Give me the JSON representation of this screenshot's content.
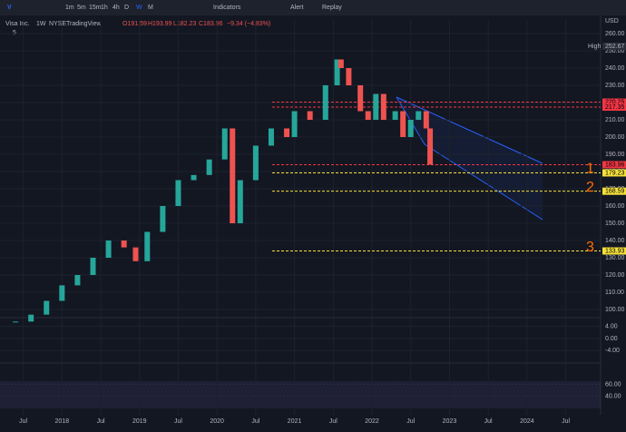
{
  "toolbar": {
    "symbol": "V",
    "intervals": [
      "1m",
      "5m",
      "15m",
      "1h",
      "4h",
      "D",
      "W",
      "M"
    ],
    "indicators": "Indicators",
    "alert": "Alert",
    "replay": "Replay"
  },
  "legend": {
    "name": "Visa Inc.",
    "interval": "1W",
    "exchange": "NYSE",
    "source": "TradingView",
    "ohlc": [
      "O191.59",
      "H193.99",
      "L182.23",
      "C183.96"
    ],
    "change": "−9.34 (−4.83%)",
    "count": "5"
  },
  "chart_data": {
    "type": "candle",
    "x": [
      2017.4,
      2017.6,
      2017.8,
      2018.0,
      2018.2,
      2018.4,
      2018.6,
      2018.8,
      2018.95,
      2019.1,
      2019.3,
      2019.5,
      2019.7,
      2019.9,
      2020.1,
      2020.2,
      2020.3,
      2020.5,
      2020.7,
      2020.9,
      2021.0,
      2021.2,
      2021.4,
      2021.55,
      2021.6,
      2021.7,
      2021.85,
      2021.95,
      2022.05,
      2022.15,
      2022.3,
      2022.4,
      2022.5,
      2022.6,
      2022.7,
      2022.75
    ],
    "values": [
      93,
      97,
      105,
      114,
      120,
      130,
      140,
      136,
      128,
      145,
      160,
      175,
      178,
      187,
      205,
      150,
      175,
      195,
      205,
      200,
      215,
      210,
      230,
      245,
      240,
      230,
      215,
      210,
      225,
      210,
      215,
      200,
      210,
      215,
      205,
      184
    ],
    "up_color": "#26a69a",
    "down_color": "#ef5350",
    "unit": "USD",
    "xlim": [
      2017.2,
      2024.95
    ],
    "xticks": [
      {
        "value": 2017.5,
        "label": "Jul"
      },
      2018,
      {
        "value": 2018.5,
        "label": "Jul"
      },
      2019,
      {
        "value": 2019.5,
        "label": "Jul"
      },
      2020,
      {
        "value": 2020.5,
        "label": "Jul"
      },
      2021,
      {
        "value": 2021.5,
        "label": "Jul"
      },
      2022,
      {
        "value": 2022.5,
        "label": "Jul"
      },
      2023,
      {
        "value": 2023.5,
        "label": "Jul"
      },
      2024,
      {
        "value": 2024.5,
        "label": "Jul"
      }
    ],
    "ylim": [
      100,
      260
    ],
    "yticks": [
      {
        "value": 260,
        "label": "260.00"
      },
      {
        "value": 250,
        "label": "250.00"
      },
      {
        "value": 240,
        "label": "240.00"
      },
      {
        "value": 230,
        "label": "230.00"
      },
      {
        "value": 220,
        "label": "220.00"
      },
      {
        "value": 210,
        "label": "210.00"
      },
      {
        "value": 200,
        "label": "200.00"
      },
      {
        "value": 190,
        "label": "190.00"
      },
      {
        "value": 180,
        "label": "180.00"
      },
      {
        "value": 170,
        "label": "170.00"
      },
      {
        "value": 160,
        "label": "160.00"
      },
      {
        "value": 150,
        "label": "150.00"
      },
      {
        "value": 140,
        "label": "140.00"
      },
      {
        "value": 130,
        "label": "130.00"
      },
      {
        "value": 120,
        "label": "120.00"
      },
      {
        "value": 110,
        "label": "110.00"
      },
      {
        "value": 100,
        "label": "100.00"
      }
    ],
    "high": {
      "label": "High",
      "value": 252.67,
      "text": "252.67"
    },
    "levels": [
      {
        "value": 220.25,
        "label": "220.25",
        "color": "#f23645"
      },
      {
        "value": 217.35,
        "label": "217.35",
        "color": "#f23645"
      },
      {
        "value": 183.96,
        "label": "183.96",
        "color": "#f23645"
      },
      {
        "value": 179.23,
        "label": "179.23",
        "color": "#f5e13b"
      },
      {
        "value": 168.59,
        "label": "168.59",
        "color": "#f5e13b"
      },
      {
        "value": 133.93,
        "label": "133.93",
        "color": "#f5e13b"
      }
    ],
    "annotations": [
      "1",
      "2",
      "3"
    ],
    "macd_yticks": [
      {
        "value": 4,
        "label": "4.00"
      },
      {
        "value": 0,
        "label": "0.00"
      },
      {
        "value": -4,
        "label": "-4.00"
      }
    ],
    "macd_ylim": [
      -6,
      6
    ],
    "rsi_yticks": [
      {
        "value": 60,
        "label": "60.00"
      },
      {
        "value": 40,
        "label": "40.00"
      }
    ],
    "rsi_ylim": [
      10,
      90
    ]
  }
}
